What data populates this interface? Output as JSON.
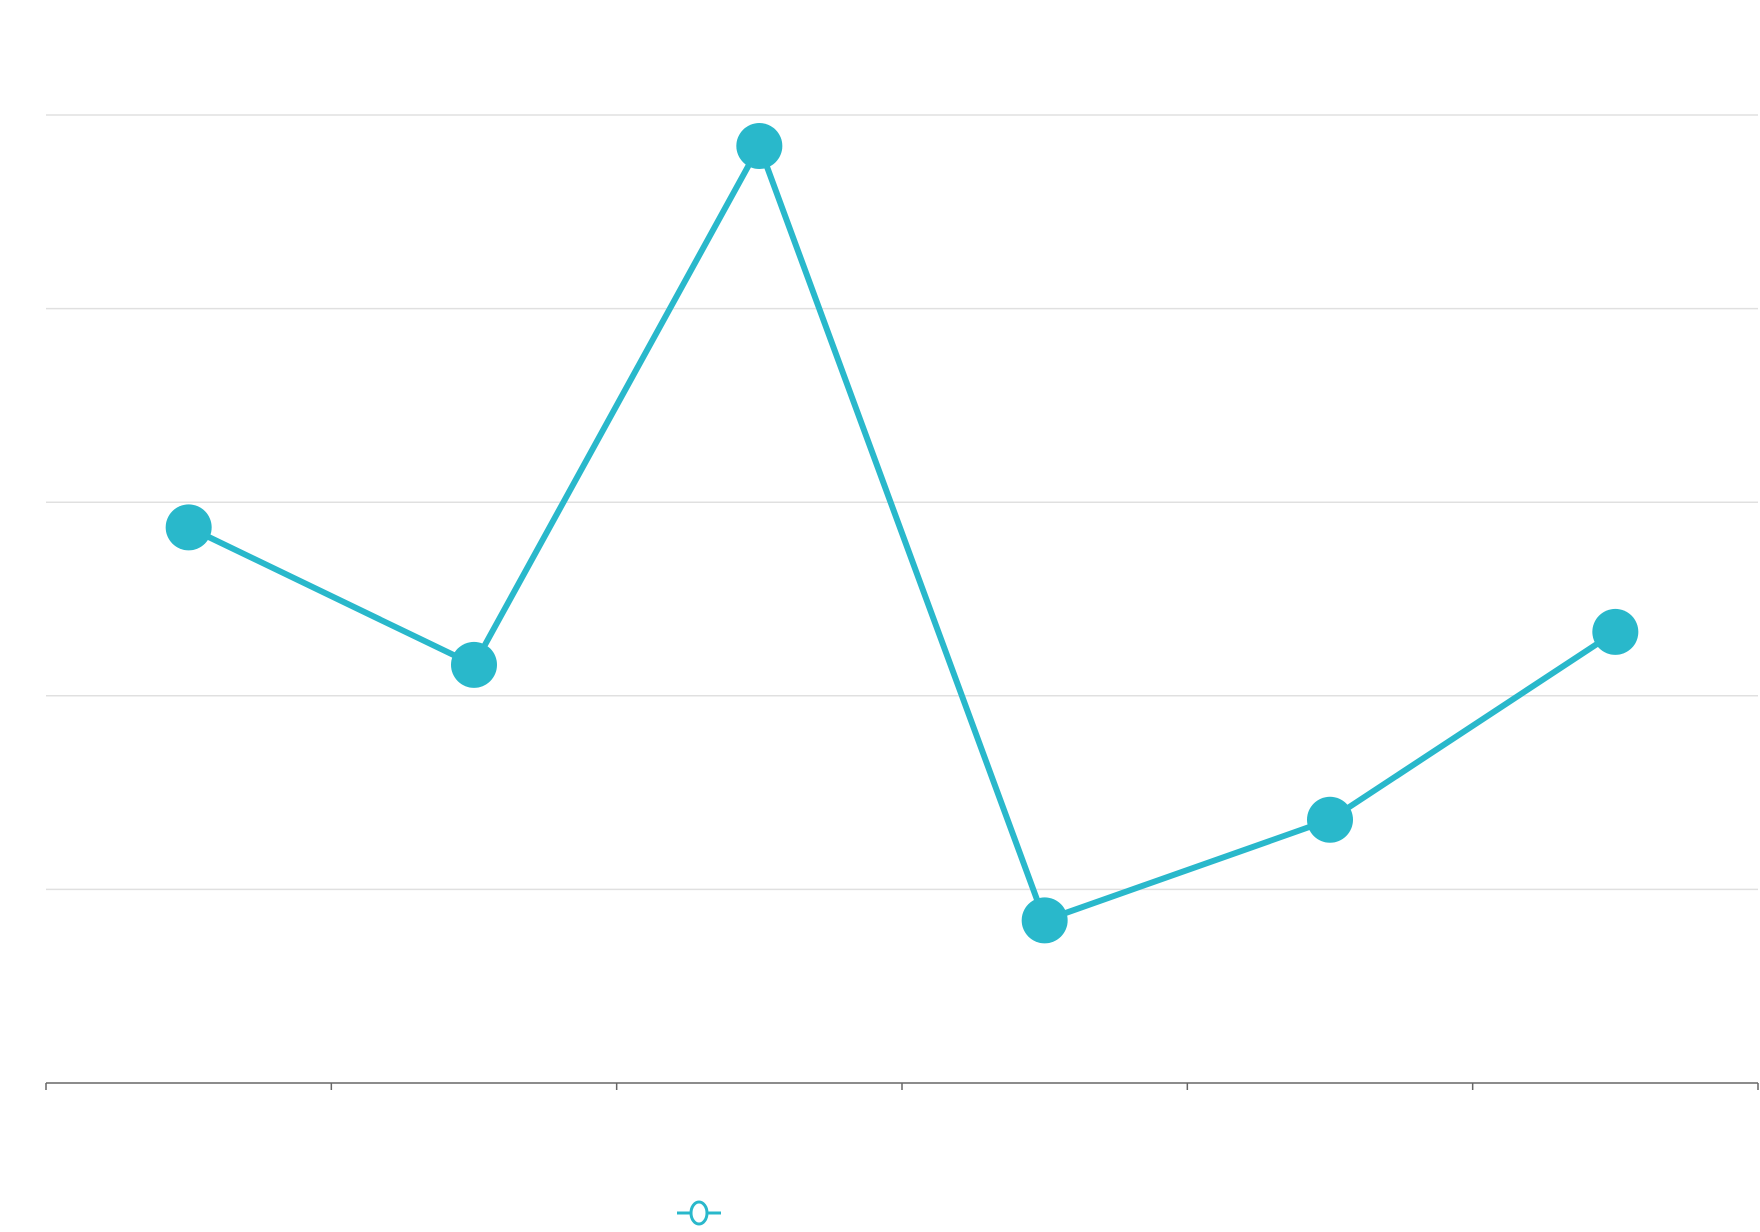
{
  "chart_data": {
    "type": "line",
    "title": "",
    "xlabel": "",
    "ylabel": "",
    "x": [
      1,
      2,
      3,
      4,
      5,
      6
    ],
    "xlim": [
      0.5,
      6.5
    ],
    "ylim": [
      0,
      5
    ],
    "y_gridlines": [
      1,
      2,
      3,
      4,
      5
    ],
    "x_ticks": [
      0.5,
      1.5,
      2.5,
      3.5,
      4.5,
      5.5,
      6.5
    ],
    "grid": "horizontal",
    "legend": "bottom",
    "series": [
      {
        "color": "#29b8cb",
        "marker": "circle",
        "values": [
          2.87,
          2.16,
          4.84,
          0.84,
          1.36,
          2.33
        ]
      }
    ]
  }
}
